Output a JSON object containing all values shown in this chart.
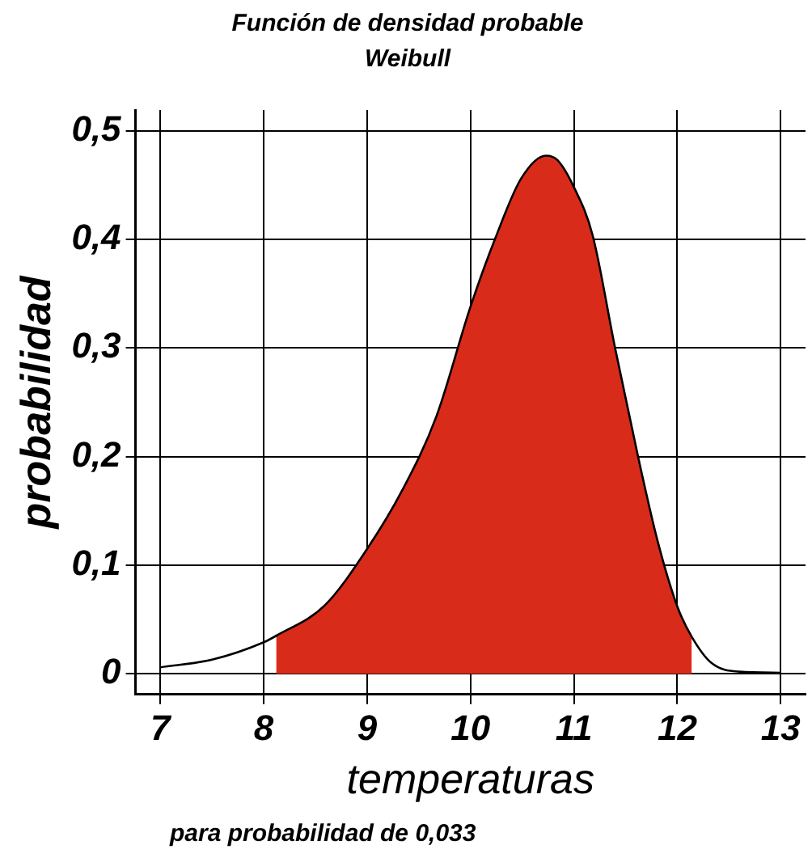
{
  "chart_data": {
    "type": "line",
    "title": "Función de densidad probable",
    "subtitle": "Weibull",
    "xlabel": "temperaturas",
    "ylabel": "probabilidad",
    "annotations": [
      "para probabilidad de 0,033"
    ],
    "xlim": [
      6.76,
      13.24
    ],
    "xticks": [
      7,
      8,
      9,
      10,
      11,
      12,
      13
    ],
    "ylim": [
      -0.019,
      0.519
    ],
    "yticks": [
      {
        "value": 0,
        "label": "0"
      },
      {
        "value": 0.1,
        "label": "0,1"
      },
      {
        "value": 0.2,
        "label": "0,2"
      },
      {
        "value": 0.3,
        "label": "0,3"
      },
      {
        "value": 0.4,
        "label": "0,4"
      },
      {
        "value": 0.5,
        "label": "0,5"
      }
    ],
    "grid": true,
    "legend": false,
    "marker": "none",
    "line_style": "solid",
    "series": [
      {
        "type": "area",
        "color": "#d92b1a",
        "x": [
          8.12,
          8.59,
          9,
          9.34,
          9.67,
          10,
          10.24,
          10.49,
          10.73,
          10.84,
          11,
          11.18,
          11.4,
          11.62,
          11.81,
          12,
          12.14
        ],
        "values": [
          0.035,
          0.063,
          0.115,
          0.169,
          0.237,
          0.338,
          0.401,
          0.456,
          0.477,
          0.473,
          0.448,
          0.404,
          0.299,
          0.2,
          0.122,
          0.062,
          0.034
        ]
      },
      {
        "type": "line",
        "color": "#000000",
        "x": [
          7,
          7.5,
          8,
          8.12,
          8.59,
          9,
          9.34,
          9.67,
          10,
          10.24,
          10.49,
          10.73,
          10.84,
          11,
          11.18,
          11.4,
          11.62,
          11.81,
          12,
          12.14,
          12.33,
          12.6,
          13
        ],
        "values": [
          0.006,
          0.013,
          0.029,
          0.035,
          0.063,
          0.115,
          0.169,
          0.237,
          0.338,
          0.401,
          0.456,
          0.477,
          0.473,
          0.448,
          0.404,
          0.299,
          0.2,
          0.122,
          0.062,
          0.034,
          0.01,
          0.002,
          0.001
        ]
      }
    ]
  }
}
